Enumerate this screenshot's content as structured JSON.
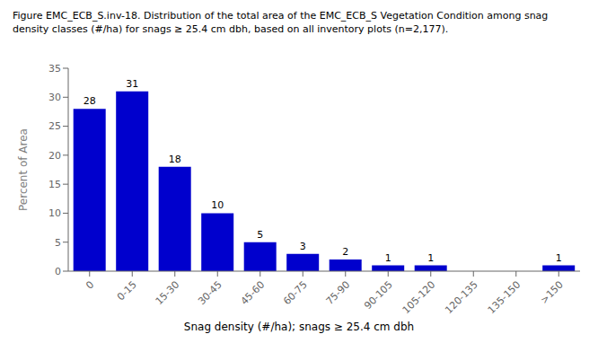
{
  "chart_data": {
    "type": "bar",
    "title": "Figure EMC_ECB_S.inv-18. Distribution of the total area of the EMC_ECB_S Vegetation Condition among snag density classes (#/ha) for snags ≥ 25.4 cm dbh, based on all inventory plots (n=2,177).",
    "categories": [
      "0",
      "0-15",
      "15-30",
      "30-45",
      "45-60",
      "60-75",
      "75-90",
      "90-105",
      "105-120",
      "120-135",
      "135-150",
      ">150"
    ],
    "values": [
      28,
      31,
      18,
      10,
      5,
      3,
      2,
      1,
      1,
      0,
      0,
      1
    ],
    "color": "#0000CD",
    "xlabel": "Snag density (#/ha); snags ≥ 25.4 cm dbh",
    "ylabel": "Percent of Area",
    "ylim": [
      0,
      35
    ],
    "yticks": [
      0,
      5,
      10,
      15,
      20,
      25,
      30,
      35
    ],
    "grid": false,
    "data_labels": true
  }
}
